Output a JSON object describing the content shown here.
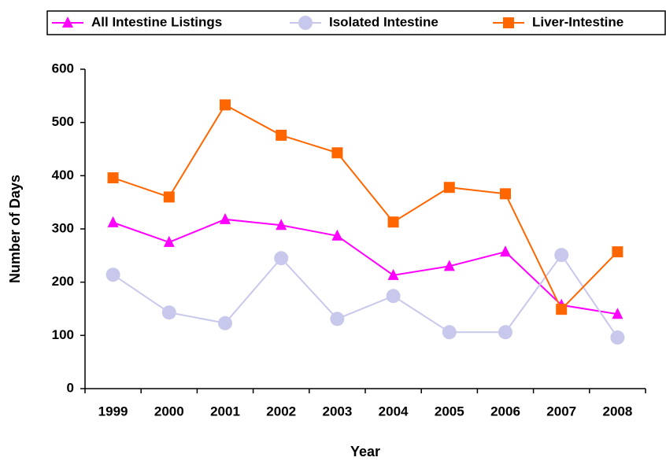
{
  "chart_data": {
    "type": "line",
    "categories": [
      "1999",
      "2000",
      "2001",
      "2002",
      "2003",
      "2004",
      "2005",
      "2006",
      "2007",
      "2008"
    ],
    "series": [
      {
        "name": "All Intestine Listings",
        "color": "#ff00ff",
        "marker": "triangle",
        "values": [
          312,
          275,
          318,
          307,
          287,
          213,
          230,
          257,
          157,
          140
        ]
      },
      {
        "name": "Isolated Intestine",
        "color": "#c8c8ec",
        "marker": "circle",
        "values": [
          214,
          143,
          123,
          245,
          131,
          174,
          106,
          106,
          251,
          96
        ]
      },
      {
        "name": "Liver-Intestine",
        "color": "#ff6600",
        "marker": "square",
        "values": [
          396,
          360,
          533,
          476,
          443,
          313,
          378,
          366,
          149,
          257
        ]
      }
    ],
    "y_label": "Number of Days",
    "x_label": "Year",
    "ylim": [
      0,
      600
    ],
    "yticks": [
      0,
      100,
      200,
      300,
      400,
      500,
      600
    ],
    "grid": false
  }
}
